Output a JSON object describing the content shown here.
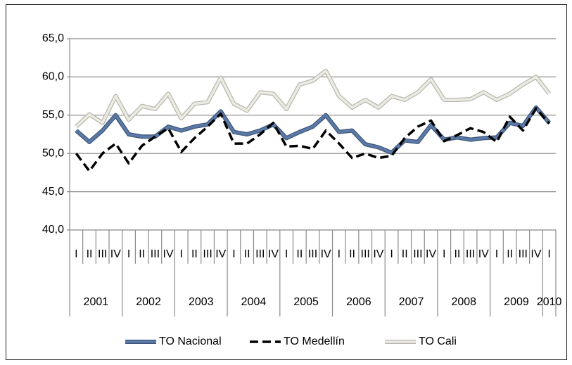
{
  "chart_data": {
    "type": "line",
    "categories": [
      "I",
      "II",
      "III",
      "IV",
      "I",
      "II",
      "III",
      "IV",
      "I",
      "II",
      "III",
      "IV",
      "I",
      "II",
      "III",
      "IV",
      "I",
      "II",
      "III",
      "IV",
      "I",
      "II",
      "III",
      "IV",
      "I",
      "II",
      "III",
      "IV",
      "I",
      "II",
      "III",
      "IV",
      "I",
      "II",
      "III",
      "IV",
      "I"
    ],
    "category_groups": [
      "2001",
      "2002",
      "2003",
      "2004",
      "2005",
      "2006",
      "2007",
      "2008",
      "2009",
      "2010"
    ],
    "series": [
      {
        "name": "TO Nacional",
        "color": "#5b7aa8",
        "outline": "#3d5578",
        "values": [
          53.0,
          51.5,
          53.0,
          55.0,
          52.5,
          52.2,
          52.2,
          53.5,
          53.0,
          53.5,
          53.8,
          55.5,
          52.8,
          52.5,
          53.0,
          53.8,
          52.0,
          52.8,
          53.5,
          55.0,
          52.8,
          53.0,
          51.2,
          50.8,
          50.1,
          51.7,
          51.5,
          53.7,
          51.8,
          52.1,
          51.8,
          52.0,
          52.1,
          54.0,
          53.6,
          56.0,
          54.0
        ]
      },
      {
        "name": "TO Medellín",
        "color": "#000000",
        "dash": true,
        "values": [
          50.0,
          47.7,
          50.0,
          51.3,
          48.7,
          51.0,
          52.2,
          53.3,
          50.2,
          52.0,
          53.5,
          55.2,
          51.3,
          51.3,
          52.5,
          54.0,
          50.9,
          51.0,
          50.6,
          53.0,
          51.3,
          49.4,
          50.0,
          49.4,
          49.7,
          52.0,
          53.5,
          54.3,
          51.6,
          52.4,
          53.3,
          52.8,
          51.5,
          54.8,
          53.0,
          55.9,
          53.9
        ]
      },
      {
        "name": "TO Cali",
        "color": "#ebebe3",
        "outline": "#b8b8ae",
        "values": [
          53.5,
          55.1,
          54.0,
          57.5,
          54.4,
          56.2,
          55.8,
          57.8,
          54.6,
          56.5,
          56.7,
          59.9,
          56.5,
          55.6,
          58.0,
          57.8,
          55.8,
          59.0,
          59.5,
          60.8,
          57.5,
          56.0,
          57.0,
          56.0,
          57.5,
          57.0,
          58.0,
          59.7,
          57.0,
          57.0,
          57.1,
          58.0,
          57.0,
          57.8,
          59.0,
          60.0,
          57.8
        ]
      }
    ],
    "ylim": [
      40,
      65
    ],
    "yticks": [
      {
        "value": 40,
        "label": "40,0"
      },
      {
        "value": 45,
        "label": "45,0"
      },
      {
        "value": 50,
        "label": "50,0"
      },
      {
        "value": 55,
        "label": "55,0"
      },
      {
        "value": 60,
        "label": "60,0"
      },
      {
        "value": 65,
        "label": "65,0"
      }
    ],
    "grid": true,
    "legend": "bottom"
  }
}
